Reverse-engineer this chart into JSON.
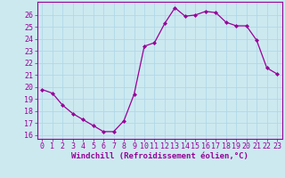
{
  "x": [
    0,
    1,
    2,
    3,
    4,
    5,
    6,
    7,
    8,
    9,
    10,
    11,
    12,
    13,
    14,
    15,
    16,
    17,
    18,
    19,
    20,
    21,
    22,
    23
  ],
  "y": [
    19.8,
    19.5,
    18.5,
    17.8,
    17.3,
    16.8,
    16.3,
    16.3,
    17.2,
    19.4,
    23.4,
    23.7,
    25.3,
    26.6,
    25.9,
    26.0,
    26.3,
    26.2,
    25.4,
    25.1,
    25.1,
    23.9,
    21.6,
    21.1
  ],
  "line_color": "#990099",
  "marker": "D",
  "marker_size": 2,
  "bg_color": "#cce9f0",
  "grid_color": "#b0d8e8",
  "xlabel": "Windchill (Refroidissement éolien,°C)",
  "xlabel_fontsize": 6.5,
  "ylabel_ticks": [
    16,
    17,
    18,
    19,
    20,
    21,
    22,
    23,
    24,
    25,
    26
  ],
  "xtick_labels": [
    "0",
    "1",
    "2",
    "3",
    "4",
    "5",
    "6",
    "7",
    "8",
    "9",
    "10",
    "11",
    "12",
    "13",
    "14",
    "15",
    "16",
    "17",
    "18",
    "19",
    "20",
    "21",
    "22",
    "23"
  ],
  "xlim": [
    -0.5,
    23.5
  ],
  "ylim": [
    15.7,
    27.1
  ],
  "tick_fontsize": 6.0
}
